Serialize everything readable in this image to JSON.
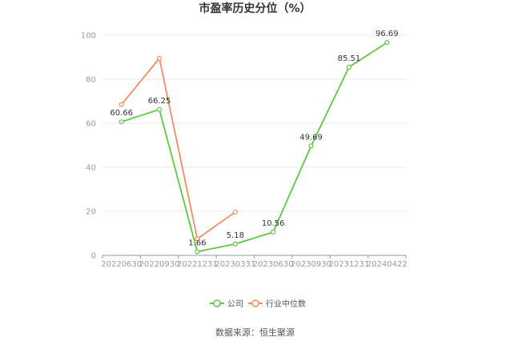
{
  "chart_data": {
    "type": "line",
    "title": "市盈率历史分位（%）",
    "categories": [
      "20220630",
      "20220930",
      "20221231",
      "20230331",
      "20230630",
      "20230930",
      "20231231",
      "20240422"
    ],
    "ylim": [
      0,
      100
    ],
    "yticks": [
      0,
      20,
      40,
      60,
      80,
      100
    ],
    "grid": true,
    "legend_position": "bottom",
    "series": [
      {
        "name": "公司",
        "color": "#5ec73f",
        "values": [
          60.66,
          66.25,
          1.66,
          5.18,
          10.56,
          49.69,
          85.51,
          96.69
        ],
        "labels": [
          "60.66",
          "66.25",
          "1.66",
          "5.18",
          "10.56",
          "49.69",
          "85.51",
          "96.69"
        ]
      },
      {
        "name": "行业中位数",
        "color": "#f28c60",
        "values": [
          68.5,
          89.5,
          7.5,
          19.7,
          null,
          null,
          null,
          null
        ]
      }
    ],
    "source": "数据来源：恒生聚源"
  }
}
